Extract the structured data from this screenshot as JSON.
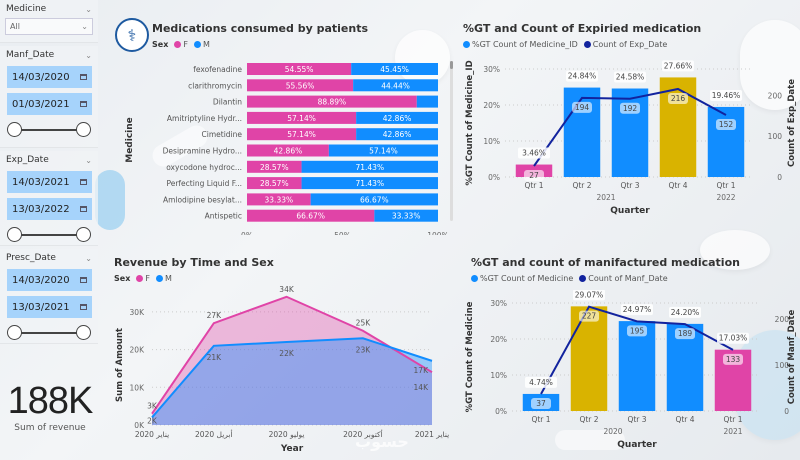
{
  "colors": {
    "female": "#e044a7",
    "male": "#118dff",
    "highlight": "#d9b300",
    "line": "#12239e",
    "slicer_fill": "#a6d3fb"
  },
  "sidebar": {
    "medicine": {
      "title": "Medicine",
      "selected": "All"
    },
    "manf_date": {
      "title": "Manf_Date",
      "start": "14/03/2020",
      "end": "01/03/2021"
    },
    "exp_date": {
      "title": "Exp_Date",
      "start": "14/03/2021",
      "end": "13/03/2022"
    },
    "presc_date": {
      "title": "Presc_Date",
      "start": "14/03/2020",
      "end": "13/03/2021"
    },
    "kpi": {
      "value": "188K",
      "label": "Sum of revenue"
    }
  },
  "watermark": "حسوب",
  "chart_data": [
    {
      "id": "medications",
      "type": "bar",
      "stacked": "100%",
      "orientation": "horizontal",
      "title": "Medications consumed by patients",
      "legend_title": "Sex",
      "legend": [
        "F",
        "M"
      ],
      "ylabel": "Medicine",
      "xlabel": "",
      "x_ticks": [
        "0%",
        "50%",
        "100%"
      ],
      "categories": [
        "fexofenadine",
        "clarithromycin",
        "Dilantin",
        "Amitriptyline Hydr...",
        "Cimetidine",
        "Desipramine Hydro...",
        "oxycodone hydroc...",
        "Perfecting Liquid F...",
        "Amlodipine besylat...",
        "Antispetic"
      ],
      "series": [
        {
          "name": "F",
          "values": [
            54.55,
            55.56,
            88.89,
            57.14,
            57.14,
            42.86,
            28.57,
            28.57,
            33.33,
            66.67
          ]
        },
        {
          "name": "M",
          "values": [
            45.45,
            44.44,
            11.11,
            42.86,
            42.86,
            57.14,
            71.43,
            71.43,
            66.67,
            33.33
          ]
        }
      ],
      "labels": {
        "F": [
          "54.55%",
          "55.56%",
          "88.89%",
          "57.14%",
          "57.14%",
          "42.86%",
          "28.57%",
          "28.57%",
          "33.33%",
          "66.67%"
        ],
        "M": [
          "45.45%",
          "44.44%",
          "",
          "42.86%",
          "42.86%",
          "57.14%",
          "71.43%",
          "71.43%",
          "66.67%",
          "33.33%"
        ]
      }
    },
    {
      "id": "expired",
      "type": "bar",
      "combo": "bar+line",
      "title": "%GT and Count of Expiried medication",
      "legend": [
        "%GT Count of Medicine_ID",
        "Count of Exp_Date"
      ],
      "categories": [
        "Qtr 1",
        "Qtr 2",
        "Qtr 3",
        "Qtr 4",
        "Qtr 1"
      ],
      "year_groups": [
        {
          "label": "2021",
          "span": [
            0,
            3
          ]
        },
        {
          "label": "2022",
          "span": [
            4,
            4
          ]
        }
      ],
      "xlabel": "Quarter",
      "ylabel": "%GT Count of Medicine_ID",
      "y2label": "Count of Exp_Date",
      "ylim": [
        0,
        30
      ],
      "y_ticks": [
        "0%",
        "10%",
        "20%",
        "30%"
      ],
      "y2lim": [
        0,
        265
      ],
      "y2_ticks": [
        "0",
        "100",
        "200"
      ],
      "bar_values": [
        3.46,
        24.84,
        24.58,
        27.66,
        19.46
      ],
      "bar_labels": [
        "3.46%",
        "24.84%",
        "24.58%",
        "27.66%",
        "19.46%"
      ],
      "bar_colors": [
        "female",
        "male",
        "male",
        "highlight",
        "male"
      ],
      "line_values": [
        27,
        194,
        192,
        216,
        152
      ],
      "line_labels": [
        "27",
        "194",
        "192",
        "216",
        "152"
      ]
    },
    {
      "id": "revenue",
      "type": "area",
      "title": "Revenue by Time and Sex",
      "legend_title": "Sex",
      "legend": [
        "F",
        "M"
      ],
      "xlabel": "Year",
      "ylabel": "Sum of Amount",
      "x": [
        "يناير 2020",
        "أبريل 2020",
        "يوليو 2020",
        "أكتوبر 2020",
        "يناير 2021"
      ],
      "x_positions": [
        0,
        0.7,
        1.7,
        2.7,
        3.7
      ],
      "ylim": [
        0,
        35000
      ],
      "y_ticks": [
        "0K",
        "10K",
        "20K",
        "30K"
      ],
      "series": [
        {
          "name": "F",
          "x": [
            0,
            0.85,
            1.85,
            2.9,
            3.85
          ],
          "values": [
            3000,
            27000,
            34000,
            25000,
            14000
          ],
          "labels": [
            "3K",
            "27K",
            "34K",
            "25K",
            "14K"
          ]
        },
        {
          "name": "M",
          "x": [
            0,
            0.85,
            1.85,
            2.9,
            3.85
          ],
          "values": [
            2000,
            21000,
            22000,
            23000,
            17000
          ],
          "labels": [
            "2K",
            "21K",
            "22K",
            "23K",
            "17K"
          ]
        }
      ]
    },
    {
      "id": "manufactured",
      "type": "bar",
      "combo": "bar+line",
      "title": "%GT and count of manifactured medication",
      "legend": [
        "%GT Count of Medicine",
        "Count of Manf_Date"
      ],
      "categories": [
        "Qtr 1",
        "Qtr 2",
        "Qtr 3",
        "Qtr 4",
        "Qtr 1"
      ],
      "year_groups": [
        {
          "label": "2020",
          "span": [
            0,
            3
          ]
        },
        {
          "label": "2021",
          "span": [
            4,
            4
          ]
        }
      ],
      "xlabel": "Quarter",
      "ylabel": "%GT Count of Medicine",
      "y2label": "Count of Manf_Date",
      "ylim": [
        0,
        30
      ],
      "y_ticks": [
        "0%",
        "10%",
        "20%",
        "30%"
      ],
      "y2lim": [
        0,
        235
      ],
      "y2_ticks": [
        "0",
        "100",
        "200"
      ],
      "bar_values": [
        4.74,
        29.07,
        24.97,
        24.2,
        17.03
      ],
      "bar_labels": [
        "4.74%",
        "29.07%",
        "24.97%",
        "24.20%",
        "17.03%"
      ],
      "bar_colors": [
        "male",
        "highlight",
        "male",
        "male",
        "female"
      ],
      "line_values": [
        37,
        227,
        195,
        189,
        133
      ],
      "line_labels": [
        "37",
        "227",
        "195",
        "189",
        "133"
      ]
    }
  ]
}
